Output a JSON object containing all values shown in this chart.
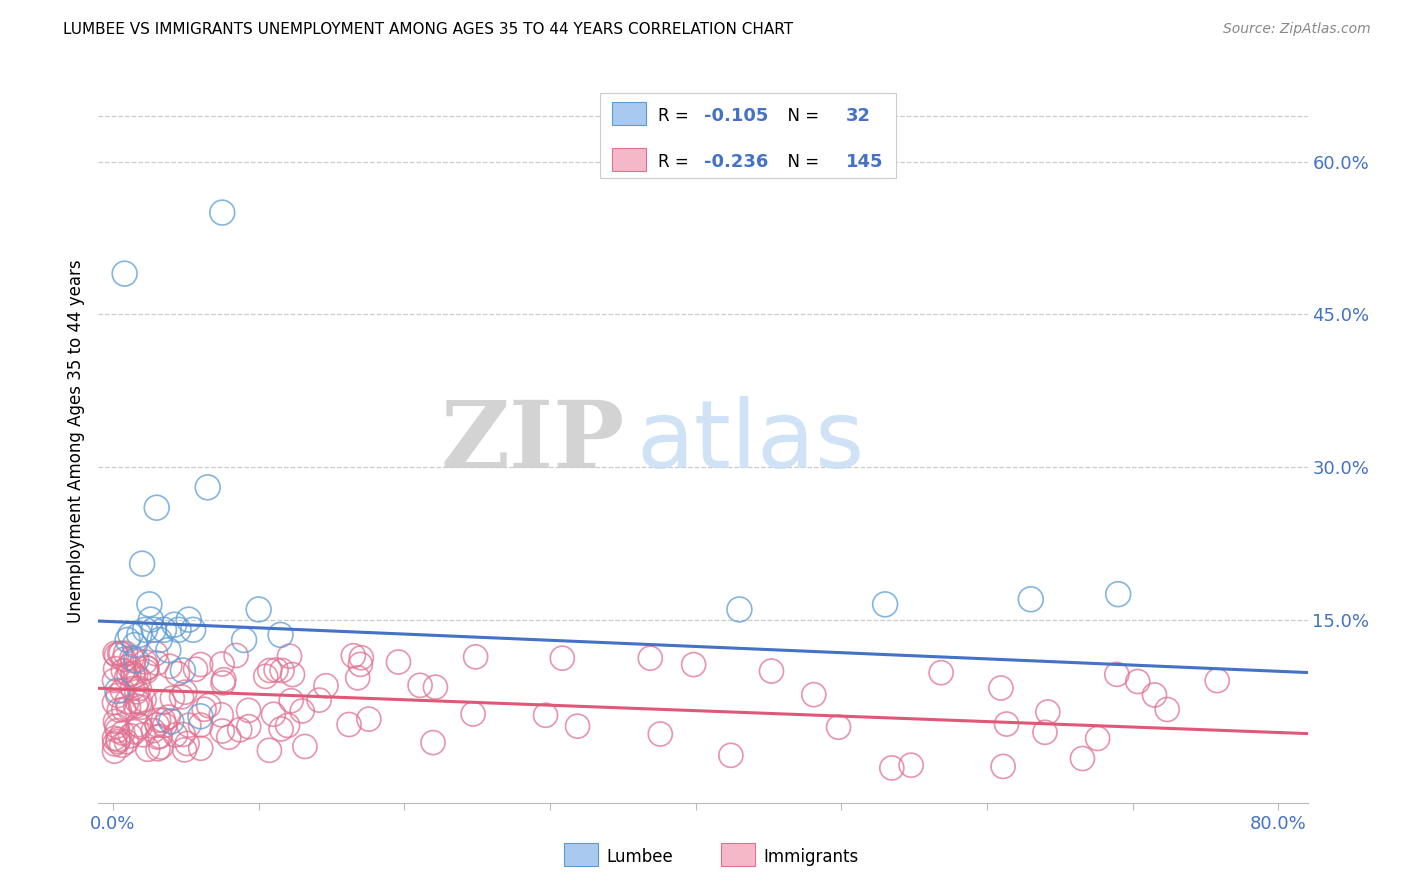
{
  "title": "LUMBEE VS IMMIGRANTS UNEMPLOYMENT AMONG AGES 35 TO 44 YEARS CORRELATION CHART",
  "source": "Source: ZipAtlas.com",
  "ylabel": "Unemployment Among Ages 35 to 44 years",
  "xlim": [
    -0.01,
    0.82
  ],
  "ylim": [
    -0.03,
    0.68
  ],
  "lumbee_R": -0.105,
  "lumbee_N": 32,
  "immigrants_R": -0.236,
  "immigrants_N": 145,
  "lumbee_color": "#aac9f0",
  "immigrants_color": "#f5b8c8",
  "lumbee_edge_color": "#5b9bd5",
  "immigrants_edge_color": "#e07090",
  "lumbee_line_color": "#4472c4",
  "immigrants_line_color": "#e05878",
  "watermark_zip": "ZIP",
  "watermark_atlas": "atlas",
  "lumbee_trend": [
    0.148,
    0.098
  ],
  "immigrants_trend": [
    0.082,
    0.038
  ]
}
